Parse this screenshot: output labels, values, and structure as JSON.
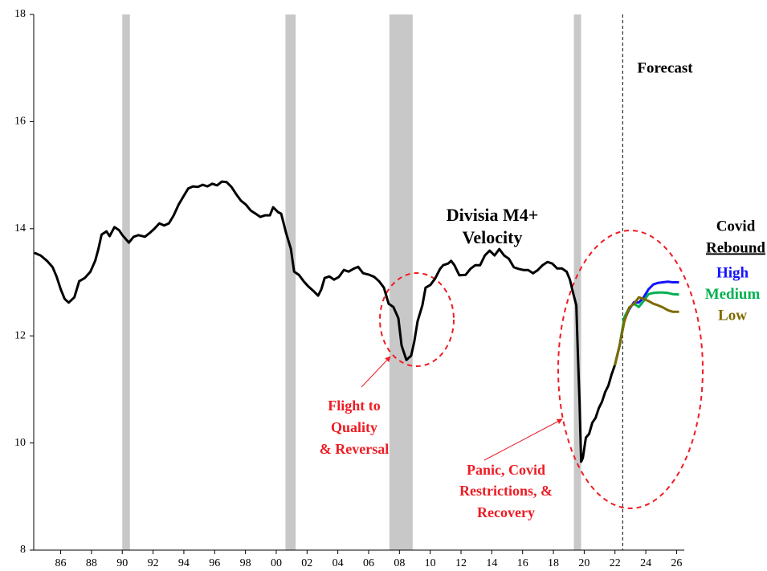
{
  "chart_data": {
    "type": "line",
    "annotations": {
      "title_line1": "Divisia M4+",
      "title_line2": "Velocity",
      "forecast": "Forecast",
      "legend_title_line1": "Covid",
      "legend_title_line2": "Rebound",
      "flight": [
        "Flight to",
        "Quality",
        "& Reversal"
      ],
      "panic": [
        "Panic, Covid",
        "Restrictions, &",
        "Recovery"
      ]
    },
    "xlim": [
      1984.75,
      2027
    ],
    "ylim": [
      8,
      18
    ],
    "yticks": [
      8,
      10,
      12,
      14,
      16,
      18
    ],
    "xticks": [
      {
        "value": 1986.5,
        "label": "86"
      },
      {
        "value": 1988.5,
        "label": "88"
      },
      {
        "value": 1990.5,
        "label": "90"
      },
      {
        "value": 1992.5,
        "label": "92"
      },
      {
        "value": 1994.5,
        "label": "94"
      },
      {
        "value": 1996.5,
        "label": "96"
      },
      {
        "value": 1998.5,
        "label": "98"
      },
      {
        "value": 2000.5,
        "label": "00"
      },
      {
        "value": 2002.5,
        "label": "02"
      },
      {
        "value": 2004.5,
        "label": "04"
      },
      {
        "value": 2006.5,
        "label": "06"
      },
      {
        "value": 2008.5,
        "label": "08"
      },
      {
        "value": 2010.5,
        "label": "10"
      },
      {
        "value": 2012.5,
        "label": "12"
      },
      {
        "value": 2014.5,
        "label": "14"
      },
      {
        "value": 2016.5,
        "label": "16"
      },
      {
        "value": 2018.5,
        "label": "18"
      },
      {
        "value": 2020.5,
        "label": "20"
      },
      {
        "value": 2022.5,
        "label": "22"
      },
      {
        "value": 2024.5,
        "label": "24"
      },
      {
        "value": 2026.5,
        "label": "26"
      }
    ],
    "grid": false,
    "recessions": [
      {
        "start": 1990.5,
        "end": 1991.0
      },
      {
        "start": 2001.1,
        "end": 2001.76
      },
      {
        "start": 2007.85,
        "end": 2009.36
      },
      {
        "start": 2019.83,
        "end": 2020.3
      }
    ],
    "forecast_start": 2023.0,
    "series": [
      {
        "color": "#000000",
        "width": 3,
        "x": [
          1984.78,
          1985.2,
          1985.61,
          1985.98,
          1986.24,
          1986.5,
          1986.76,
          1987.02,
          1987.39,
          1987.7,
          1988.06,
          1988.43,
          1988.74,
          1988.95,
          1989.16,
          1989.47,
          1989.68,
          1989.99,
          1990.3,
          1990.51,
          1990.93,
          1991.24,
          1991.55,
          1991.97,
          1992.28,
          1992.59,
          1992.91,
          1993.22,
          1993.53,
          1993.84,
          1994.16,
          1994.47,
          1994.78,
          1995.09,
          1995.41,
          1995.72,
          1996.03,
          1996.34,
          1996.66,
          1996.97,
          1997.28,
          1997.59,
          1997.91,
          1998.22,
          1998.53,
          1998.84,
          1999.16,
          1999.47,
          1999.78,
          2000.09,
          2000.3,
          2000.61,
          2000.82,
          2001.14,
          2001.45,
          2001.66,
          2001.97,
          2002.28,
          2002.59,
          2002.91,
          2003.22,
          2003.43,
          2003.64,
          2003.95,
          2004.26,
          2004.57,
          2004.89,
          2005.2,
          2005.51,
          2005.82,
          2006.14,
          2006.55,
          2006.86,
          2007.18,
          2007.49,
          2007.8,
          2008.11,
          2008.43,
          2008.64,
          2008.95,
          2009.26,
          2009.47,
          2009.68,
          2009.99,
          2010.2,
          2010.51,
          2010.82,
          2011.14,
          2011.34,
          2011.66,
          2011.86,
          2012.07,
          2012.39,
          2012.8,
          2013.11,
          2013.43,
          2013.74,
          2014.05,
          2014.36,
          2014.68,
          2014.99,
          2015.3,
          2015.61,
          2015.93,
          2016.24,
          2016.55,
          2016.86,
          2017.18,
          2017.49,
          2017.8,
          2018.11,
          2018.43,
          2018.74,
          2019.05,
          2019.36,
          2019.57,
          2019.78,
          2019.99,
          2020.09,
          2020.2,
          2020.3,
          2020.41,
          2020.61,
          2020.82,
          2021.03,
          2021.24,
          2021.45,
          2021.66,
          2021.86,
          2022.07,
          2022.28,
          2022.49
        ],
        "values": [
          13.55,
          13.5,
          13.4,
          13.28,
          13.1,
          12.87,
          12.69,
          12.62,
          12.72,
          13.02,
          13.08,
          13.2,
          13.4,
          13.62,
          13.89,
          13.95,
          13.86,
          14.03,
          13.97,
          13.88,
          13.74,
          13.85,
          13.88,
          13.85,
          13.92,
          14.0,
          14.1,
          14.06,
          14.1,
          14.25,
          14.45,
          14.6,
          14.75,
          14.79,
          14.78,
          14.82,
          14.79,
          14.84,
          14.81,
          14.88,
          14.87,
          14.78,
          14.64,
          14.52,
          14.45,
          14.34,
          14.28,
          14.22,
          14.25,
          14.25,
          14.4,
          14.31,
          14.28,
          13.92,
          13.62,
          13.2,
          13.14,
          13.02,
          12.92,
          12.84,
          12.75,
          12.87,
          13.08,
          13.11,
          13.05,
          13.1,
          13.23,
          13.2,
          13.25,
          13.29,
          13.17,
          13.14,
          13.1,
          13.02,
          12.9,
          12.6,
          12.54,
          12.33,
          11.82,
          11.55,
          11.63,
          11.9,
          12.27,
          12.57,
          12.9,
          12.95,
          13.07,
          13.25,
          13.32,
          13.35,
          13.4,
          13.32,
          13.13,
          13.14,
          13.25,
          13.32,
          13.32,
          13.5,
          13.59,
          13.5,
          13.62,
          13.5,
          13.44,
          13.28,
          13.25,
          13.23,
          13.23,
          13.17,
          13.23,
          13.32,
          13.38,
          13.35,
          13.26,
          13.26,
          13.2,
          13.05,
          12.8,
          12.57,
          11.67,
          10.77,
          9.65,
          9.72,
          10.1,
          10.17,
          10.38,
          10.47,
          10.65,
          10.77,
          10.95,
          11.07,
          11.28,
          11.45
        ]
      },
      {
        "name": "High",
        "color": "#1414ff",
        "width": 3,
        "x": [
          2022.49,
          2022.8,
          2023.11,
          2023.43,
          2023.74,
          2024.05,
          2024.36,
          2024.68,
          2024.99,
          2025.3,
          2025.61,
          2025.93,
          2026.24,
          2026.66
        ],
        "values": [
          11.45,
          11.82,
          12.3,
          12.5,
          12.63,
          12.62,
          12.72,
          12.87,
          12.96,
          12.99,
          13.0,
          13.01,
          13.0,
          13.0
        ]
      },
      {
        "name": "Medium",
        "color": "#00b050",
        "width": 3,
        "x": [
          2022.49,
          2022.8,
          2023.11,
          2023.43,
          2023.74,
          2024.05,
          2024.36,
          2024.68,
          2024.99,
          2025.3,
          2025.61,
          2025.93,
          2026.24,
          2026.66
        ],
        "values": [
          11.45,
          11.82,
          12.35,
          12.53,
          12.6,
          12.54,
          12.65,
          12.78,
          12.8,
          12.81,
          12.81,
          12.8,
          12.78,
          12.77
        ]
      },
      {
        "name": "Low",
        "color": "#7f6a00",
        "width": 3,
        "x": [
          2022.49,
          2022.8,
          2023.11,
          2023.43,
          2023.74,
          2024.05,
          2024.36,
          2024.68,
          2024.99,
          2025.3,
          2025.61,
          2025.93,
          2026.24,
          2026.66
        ],
        "values": [
          11.45,
          11.82,
          12.27,
          12.53,
          12.6,
          12.72,
          12.69,
          12.65,
          12.6,
          12.57,
          12.53,
          12.48,
          12.45,
          12.45
        ]
      }
    ]
  }
}
